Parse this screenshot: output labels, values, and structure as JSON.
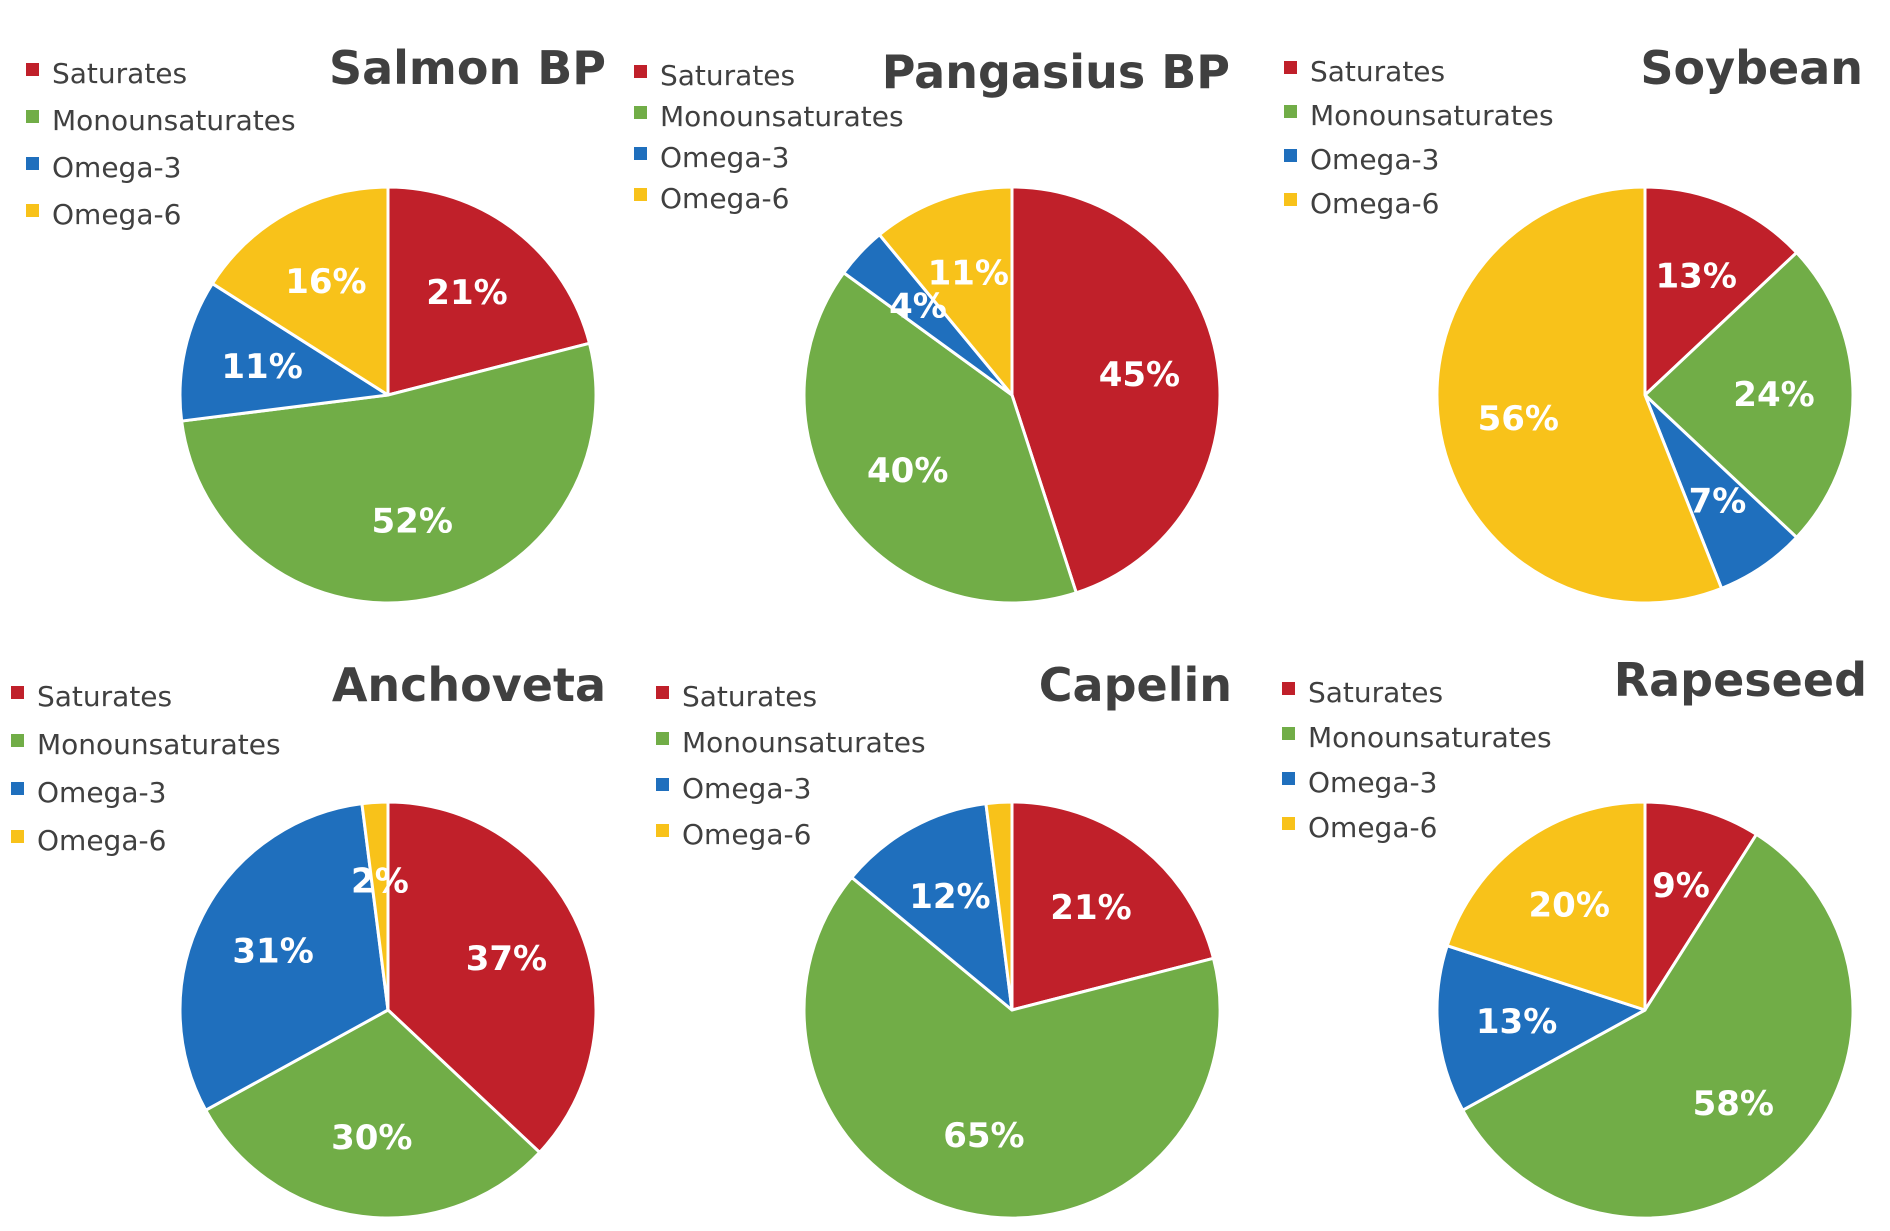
{
  "colors": {
    "Saturates": "#c0202a",
    "Monounsaturates": "#71ad47",
    "Omega-3": "#1f6fbd",
    "Omega-6": "#f8c21a"
  },
  "chart_data": [
    {
      "type": "pie",
      "title": "Salmon BP",
      "legend": "top-left",
      "slices": [
        {
          "label": "Saturates",
          "value": 21,
          "text": "21%"
        },
        {
          "label": "Monounsaturates",
          "value": 52,
          "text": "52%"
        },
        {
          "label": "Omega-3",
          "value": 11,
          "text": "11%"
        },
        {
          "label": "Omega-6",
          "value": 16,
          "text": "16%"
        }
      ]
    },
    {
      "type": "pie",
      "title": "Pangasius BP",
      "legend": "top-left",
      "slices": [
        {
          "label": "Saturates",
          "value": 45,
          "text": "45%"
        },
        {
          "label": "Monounsaturates",
          "value": 40,
          "text": "40%"
        },
        {
          "label": "Omega-3",
          "value": 4,
          "text": "4%"
        },
        {
          "label": "Omega-6",
          "value": 11,
          "text": "11%"
        }
      ]
    },
    {
      "type": "pie",
      "title": "Soybean",
      "legend": "top-left",
      "slices": [
        {
          "label": "Saturates",
          "value": 13,
          "text": "13%"
        },
        {
          "label": "Monounsaturates",
          "value": 24,
          "text": "24%"
        },
        {
          "label": "Omega-3",
          "value": 7,
          "text": "7%"
        },
        {
          "label": "Omega-6",
          "value": 56,
          "text": "56%"
        }
      ]
    },
    {
      "type": "pie",
      "title": "Anchoveta",
      "legend": "top-left",
      "slices": [
        {
          "label": "Saturates",
          "value": 37,
          "text": "37%"
        },
        {
          "label": "Monounsaturates",
          "value": 30,
          "text": "30%"
        },
        {
          "label": "Omega-3",
          "value": 31,
          "text": "31%"
        },
        {
          "label": "Omega-6",
          "value": 2,
          "text": "2%"
        }
      ]
    },
    {
      "type": "pie",
      "title": "Capelin",
      "legend": "top-left",
      "slices": [
        {
          "label": "Saturates",
          "value": 21,
          "text": "21%"
        },
        {
          "label": "Monounsaturates",
          "value": 65,
          "text": "65%"
        },
        {
          "label": "Omega-3",
          "value": 12,
          "text": "12%"
        },
        {
          "label": "Omega-6",
          "value": 2,
          "text": ""
        }
      ]
    },
    {
      "type": "pie",
      "title": "Rapeseed",
      "legend": "top-left",
      "slices": [
        {
          "label": "Saturates",
          "value": 9,
          "text": "9%"
        },
        {
          "label": "Monounsaturates",
          "value": 58,
          "text": "58%"
        },
        {
          "label": "Omega-3",
          "value": 13,
          "text": "13%"
        },
        {
          "label": "Omega-6",
          "value": 20,
          "text": "20%"
        }
      ]
    }
  ]
}
